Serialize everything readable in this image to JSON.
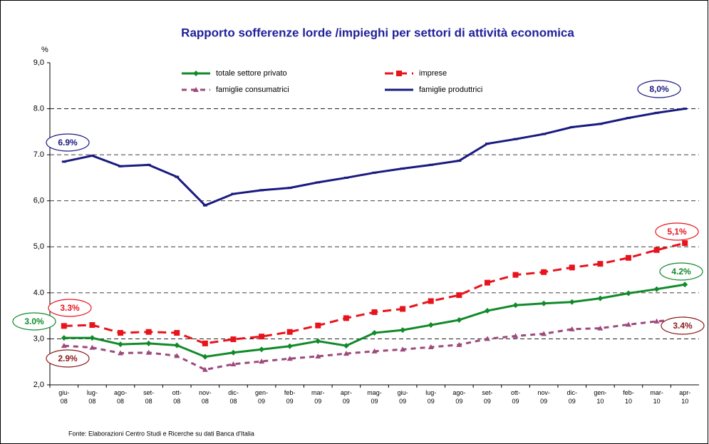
{
  "chart_data": {
    "type": "line",
    "title": "Rapporto sofferenze lorde /impieghi per settori di attività economica",
    "ylabel": "%",
    "source": "Fonte: Elaborazioni Centro Studi e Ricerche su dati Banca d'Italia",
    "categories": [
      "giu-08",
      "lug-08",
      "ago-08",
      "set-08",
      "ott-08",
      "nov-08",
      "dic-08",
      "gen-09",
      "feb-09",
      "mar-09",
      "apr-09",
      "mag-09",
      "giu-09",
      "lug-09",
      "ago-09",
      "set-09",
      "ott-09",
      "nov-09",
      "dic-09",
      "gen-10",
      "feb-10",
      "mar-10",
      "apr-10"
    ],
    "ylim": [
      2,
      9
    ],
    "yticks": [
      {
        "value": 2,
        "label": "2,0"
      },
      {
        "value": 3,
        "label": "3,0"
      },
      {
        "value": 4,
        "label": "4.0"
      },
      {
        "value": 5,
        "label": "5,0"
      },
      {
        "value": 6,
        "label": "6,0"
      },
      {
        "value": 7,
        "label": "7.0"
      },
      {
        "value": 8,
        "label": "8.0"
      },
      {
        "value": 9,
        "label": "9,0"
      }
    ],
    "grid": true,
    "series": [
      {
        "name": "totale settore privato",
        "color": "#118a2a",
        "marker": "diamond",
        "dash": "none",
        "values": [
          3.02,
          3.02,
          2.88,
          2.9,
          2.86,
          2.61,
          2.7,
          2.77,
          2.84,
          2.95,
          2.85,
          3.13,
          3.19,
          3.3,
          3.41,
          3.61,
          3.73,
          3.77,
          3.8,
          3.88,
          3.99,
          4.08,
          4.18
        ]
      },
      {
        "name": "imprese",
        "color": "#e8141c",
        "marker": "square",
        "dash": "12,7",
        "values": [
          3.28,
          3.3,
          3.13,
          3.15,
          3.13,
          2.9,
          2.99,
          3.05,
          3.15,
          3.29,
          3.45,
          3.58,
          3.65,
          3.82,
          3.95,
          4.22,
          4.39,
          4.45,
          4.55,
          4.63,
          4.76,
          4.93,
          5.08
        ]
      },
      {
        "name": "famiglie consumatrici",
        "color": "#9c4a7c",
        "marker": "triangle",
        "dash": "7,6",
        "values": [
          2.85,
          2.81,
          2.69,
          2.7,
          2.63,
          2.33,
          2.45,
          2.51,
          2.57,
          2.62,
          2.68,
          2.73,
          2.77,
          2.82,
          2.87,
          3.0,
          3.06,
          3.11,
          3.21,
          3.23,
          3.31,
          3.38,
          3.43
        ]
      },
      {
        "name": "famiglie produttrici",
        "color": "#1a1a80",
        "marker": "dash",
        "dash": "none",
        "values": [
          6.85,
          6.98,
          6.75,
          6.78,
          6.52,
          5.9,
          6.15,
          6.23,
          6.28,
          6.4,
          6.5,
          6.61,
          6.7,
          6.78,
          6.87,
          7.24,
          7.34,
          7.45,
          7.6,
          7.67,
          7.8,
          7.91,
          8.0
        ]
      }
    ],
    "annotations": [
      {
        "text": "6.9%",
        "color": "#1a1a80"
      },
      {
        "text": "8,0%",
        "color": "#1a1a80"
      },
      {
        "text": "3.3%",
        "color": "#e8141c"
      },
      {
        "text": "3.0%",
        "color": "#118a2a"
      },
      {
        "text": "2.9%",
        "color": "#8b1a1a"
      },
      {
        "text": "5,1%",
        "color": "#e8141c"
      },
      {
        "text": "4.2%",
        "color": "#118a2a"
      },
      {
        "text": "3.4%",
        "color": "#8b1a1a"
      }
    ]
  }
}
